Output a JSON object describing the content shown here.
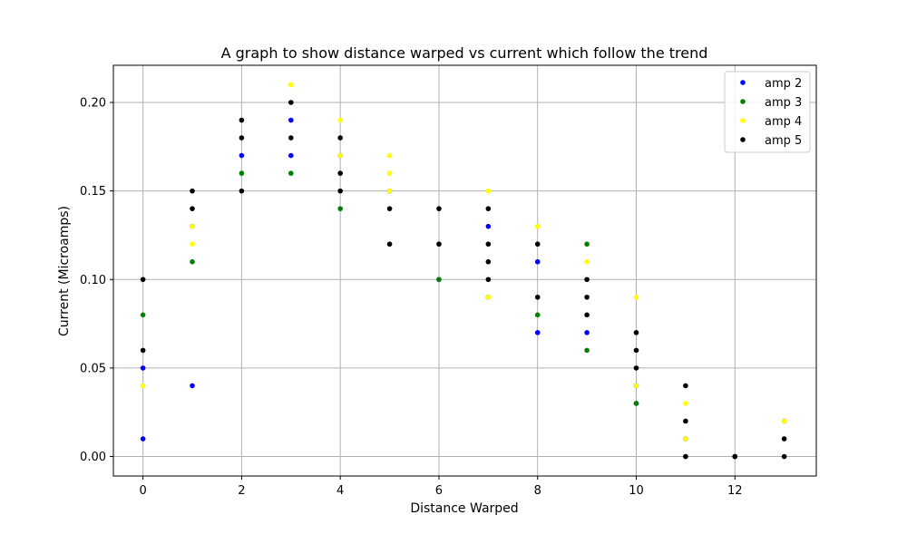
{
  "chart_data": {
    "type": "scatter",
    "title": "A graph to show distance warped vs current which follow the trend",
    "xlabel": "Distance Warped",
    "ylabel": "Current (Microamps)",
    "xlim": [
      -0.6,
      13.65
    ],
    "ylim": [
      -0.011,
      0.221
    ],
    "xticks": [
      0,
      2,
      4,
      6,
      8,
      10,
      12
    ],
    "yticks": [
      0.0,
      0.05,
      0.1,
      0.15,
      0.2
    ],
    "ytick_labels": [
      "0.00",
      "0.05",
      "0.10",
      "0.15",
      "0.20"
    ],
    "grid": true,
    "legend_position": "top-right",
    "series": [
      {
        "name": "amp 2",
        "color": "#0000ff",
        "points": [
          [
            0,
            0.01
          ],
          [
            0,
            0.05
          ],
          [
            1,
            0.04
          ],
          [
            1,
            0.13
          ],
          [
            2,
            0.17
          ],
          [
            3,
            0.19
          ],
          [
            3,
            0.17
          ],
          [
            4,
            0.17
          ],
          [
            5,
            0.15
          ],
          [
            6,
            0.1
          ],
          [
            7,
            0.13
          ],
          [
            7,
            0.09
          ],
          [
            8,
            0.11
          ],
          [
            8,
            0.07
          ],
          [
            9,
            0.07
          ],
          [
            10,
            0.04
          ],
          [
            10,
            0.03
          ],
          [
            11,
            0.01
          ],
          [
            12,
            0.0
          ],
          [
            13,
            0.02
          ]
        ]
      },
      {
        "name": "amp 3",
        "color": "#008000",
        "points": [
          [
            0,
            0.08
          ],
          [
            1,
            0.11
          ],
          [
            2,
            0.16
          ],
          [
            3,
            0.16
          ],
          [
            4,
            0.14
          ],
          [
            6,
            0.1
          ],
          [
            8,
            0.08
          ],
          [
            9,
            0.12
          ],
          [
            9,
            0.06
          ],
          [
            10,
            0.03
          ],
          [
            11,
            0.0
          ],
          [
            12,
            0.0
          ]
        ]
      },
      {
        "name": "amp 4",
        "color": "#ffff00",
        "points": [
          [
            0,
            0.04
          ],
          [
            1,
            0.12
          ],
          [
            1,
            0.13
          ],
          [
            3,
            0.21
          ],
          [
            4,
            0.19
          ],
          [
            4,
            0.17
          ],
          [
            5,
            0.17
          ],
          [
            5,
            0.16
          ],
          [
            5,
            0.15
          ],
          [
            7,
            0.15
          ],
          [
            7,
            0.09
          ],
          [
            8,
            0.13
          ],
          [
            9,
            0.11
          ],
          [
            10,
            0.09
          ],
          [
            10,
            0.04
          ],
          [
            11,
            0.03
          ],
          [
            11,
            0.01
          ],
          [
            13,
            0.02
          ]
        ]
      },
      {
        "name": "amp 5",
        "color": "#000000",
        "points": [
          [
            0,
            0.1
          ],
          [
            0,
            0.06
          ],
          [
            1,
            0.15
          ],
          [
            1,
            0.14
          ],
          [
            2,
            0.19
          ],
          [
            2,
            0.18
          ],
          [
            2,
            0.15
          ],
          [
            3,
            0.2
          ],
          [
            3,
            0.18
          ],
          [
            4,
            0.18
          ],
          [
            4,
            0.16
          ],
          [
            4,
            0.15
          ],
          [
            5,
            0.14
          ],
          [
            5,
            0.12
          ],
          [
            6,
            0.14
          ],
          [
            6,
            0.12
          ],
          [
            7,
            0.14
          ],
          [
            7,
            0.12
          ],
          [
            7,
            0.11
          ],
          [
            7,
            0.1
          ],
          [
            8,
            0.12
          ],
          [
            8,
            0.09
          ],
          [
            9,
            0.1
          ],
          [
            9,
            0.09
          ],
          [
            9,
            0.08
          ],
          [
            10,
            0.07
          ],
          [
            10,
            0.06
          ],
          [
            10,
            0.05
          ],
          [
            11,
            0.04
          ],
          [
            11,
            0.02
          ],
          [
            11,
            0.0
          ],
          [
            12,
            0.0
          ],
          [
            13,
            0.01
          ],
          [
            13,
            0.0
          ]
        ]
      }
    ]
  }
}
